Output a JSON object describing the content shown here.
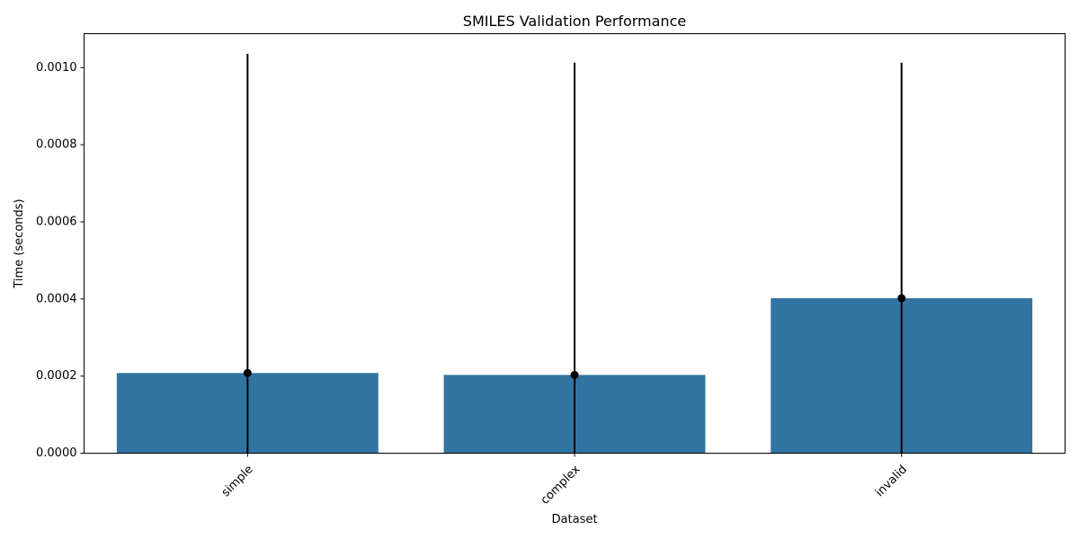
{
  "chart_data": {
    "type": "bar",
    "title": "SMILES Validation Performance",
    "xlabel": "Dataset",
    "ylabel": "Time (seconds)",
    "categories": [
      "simple",
      "complex",
      "invalid"
    ],
    "values": [
      0.000208,
      0.000203,
      0.000402
    ],
    "error_upper": [
      0.001036,
      0.001013,
      0.001013
    ],
    "error_lower": [
      0.0,
      0.0,
      0.0
    ],
    "ylim": [
      0,
      0.001088
    ],
    "yticks": [
      0.0,
      0.0002,
      0.0004,
      0.0006,
      0.0008,
      0.001
    ],
    "ytick_labels": [
      "0.0000",
      "0.0002",
      "0.0004",
      "0.0006",
      "0.0008",
      "0.0010"
    ],
    "xtick_rotation": 45,
    "grid": false,
    "legend": "none",
    "bar_color": "#3274a1",
    "error_color": "#000000"
  }
}
